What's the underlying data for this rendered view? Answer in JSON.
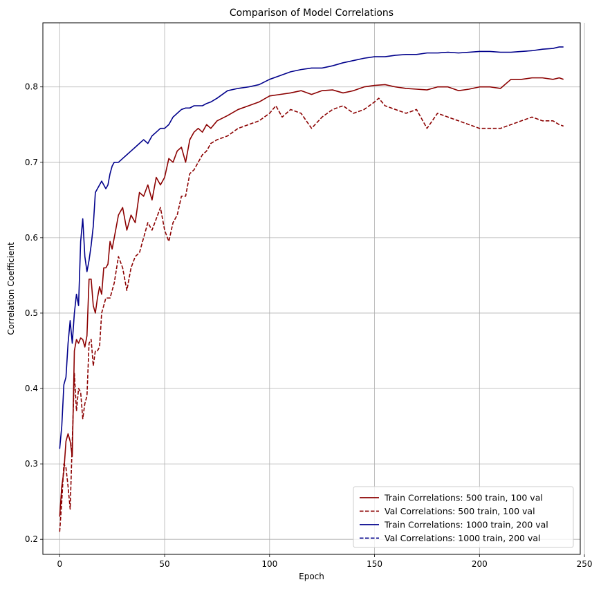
{
  "chart_data": {
    "type": "line",
    "title": "Comparison of Model Correlations",
    "xlabel": "Epoch",
    "ylabel": "Correlation Coefficient",
    "xlim": [
      -8,
      248
    ],
    "ylim": [
      0.18,
      0.885
    ],
    "xticks": [
      0,
      50,
      100,
      150,
      200,
      250
    ],
    "yticks": [
      0.2,
      0.3,
      0.4,
      0.5,
      0.6,
      0.7,
      0.8
    ],
    "grid": true,
    "legend_position": "lower-right",
    "series": [
      {
        "name": "Train Correlations: 500 train, 100 val",
        "color": "#8b0000",
        "style": "solid",
        "x": [
          0,
          1,
          2,
          3,
          4,
          5,
          6,
          7,
          8,
          9,
          10,
          11,
          12,
          13,
          14,
          15,
          16,
          17,
          18,
          19,
          20,
          21,
          22,
          23,
          24,
          25,
          26,
          28,
          30,
          32,
          34,
          36,
          38,
          40,
          42,
          44,
          46,
          48,
          50,
          52,
          54,
          56,
          58,
          60,
          62,
          64,
          66,
          68,
          70,
          72,
          75,
          80,
          85,
          90,
          95,
          100,
          105,
          110,
          115,
          120,
          125,
          130,
          135,
          140,
          145,
          150,
          155,
          160,
          165,
          170,
          175,
          180,
          185,
          190,
          195,
          200,
          205,
          210,
          215,
          220,
          225,
          230,
          235,
          238,
          240
        ],
        "y": [
          0.23,
          0.27,
          0.29,
          0.33,
          0.34,
          0.33,
          0.31,
          0.45,
          0.465,
          0.46,
          0.467,
          0.465,
          0.455,
          0.47,
          0.545,
          0.545,
          0.51,
          0.5,
          0.52,
          0.535,
          0.525,
          0.56,
          0.56,
          0.565,
          0.595,
          0.585,
          0.6,
          0.63,
          0.64,
          0.61,
          0.63,
          0.62,
          0.66,
          0.655,
          0.67,
          0.65,
          0.68,
          0.67,
          0.68,
          0.705,
          0.7,
          0.715,
          0.72,
          0.7,
          0.73,
          0.74,
          0.745,
          0.74,
          0.75,
          0.745,
          0.755,
          0.762,
          0.77,
          0.775,
          0.78,
          0.788,
          0.79,
          0.792,
          0.795,
          0.79,
          0.795,
          0.796,
          0.792,
          0.795,
          0.8,
          0.802,
          0.803,
          0.8,
          0.798,
          0.797,
          0.796,
          0.8,
          0.8,
          0.795,
          0.797,
          0.8,
          0.8,
          0.798,
          0.81,
          0.81,
          0.812,
          0.812,
          0.81,
          0.812,
          0.81
        ]
      },
      {
        "name": "Val Correlations: 500 train, 100 val",
        "color": "#8b0000",
        "style": "dashed",
        "x": [
          0,
          1,
          2,
          3,
          4,
          5,
          6,
          7,
          8,
          9,
          10,
          11,
          12,
          13,
          14,
          15,
          16,
          17,
          18,
          19,
          20,
          21,
          22,
          24,
          26,
          28,
          30,
          32,
          34,
          36,
          38,
          40,
          42,
          44,
          46,
          48,
          50,
          52,
          54,
          56,
          58,
          60,
          62,
          64,
          66,
          68,
          70,
          72,
          75,
          80,
          85,
          90,
          95,
          100,
          103,
          106,
          110,
          115,
          120,
          125,
          130,
          135,
          140,
          145,
          150,
          152,
          155,
          160,
          165,
          170,
          172,
          175,
          180,
          185,
          190,
          195,
          200,
          205,
          210,
          215,
          220,
          225,
          230,
          235,
          238,
          240
        ],
        "y": [
          0.21,
          0.25,
          0.3,
          0.295,
          0.27,
          0.24,
          0.33,
          0.42,
          0.37,
          0.4,
          0.395,
          0.36,
          0.38,
          0.39,
          0.46,
          0.465,
          0.43,
          0.45,
          0.45,
          0.455,
          0.5,
          0.51,
          0.52,
          0.52,
          0.54,
          0.575,
          0.56,
          0.53,
          0.56,
          0.575,
          0.58,
          0.6,
          0.62,
          0.61,
          0.625,
          0.64,
          0.61,
          0.595,
          0.62,
          0.63,
          0.655,
          0.655,
          0.685,
          0.69,
          0.7,
          0.71,
          0.715,
          0.725,
          0.73,
          0.735,
          0.745,
          0.75,
          0.755,
          0.765,
          0.775,
          0.76,
          0.77,
          0.765,
          0.745,
          0.76,
          0.77,
          0.775,
          0.765,
          0.77,
          0.78,
          0.785,
          0.775,
          0.77,
          0.765,
          0.77,
          0.76,
          0.745,
          0.765,
          0.76,
          0.755,
          0.75,
          0.745,
          0.745,
          0.745,
          0.75,
          0.755,
          0.76,
          0.755,
          0.755,
          0.75,
          0.748
        ]
      },
      {
        "name": "Train Correlations: 1000 train, 200 val",
        "color": "#00008b",
        "style": "solid",
        "x": [
          0,
          1,
          2,
          3,
          4,
          5,
          6,
          7,
          8,
          9,
          10,
          11,
          12,
          13,
          14,
          15,
          16,
          17,
          18,
          19,
          20,
          21,
          22,
          23,
          24,
          25,
          26,
          28,
          30,
          32,
          34,
          36,
          38,
          40,
          42,
          44,
          46,
          48,
          50,
          52,
          54,
          56,
          58,
          60,
          62,
          64,
          66,
          68,
          70,
          72,
          75,
          80,
          85,
          90,
          95,
          100,
          105,
          110,
          115,
          120,
          125,
          130,
          135,
          140,
          145,
          150,
          155,
          160,
          165,
          170,
          175,
          180,
          185,
          190,
          195,
          200,
          205,
          210,
          215,
          220,
          225,
          230,
          235,
          238,
          240
        ],
        "y": [
          0.32,
          0.35,
          0.405,
          0.415,
          0.46,
          0.49,
          0.46,
          0.5,
          0.525,
          0.51,
          0.595,
          0.625,
          0.575,
          0.555,
          0.57,
          0.59,
          0.615,
          0.66,
          0.665,
          0.67,
          0.675,
          0.67,
          0.665,
          0.67,
          0.685,
          0.695,
          0.7,
          0.7,
          0.705,
          0.71,
          0.715,
          0.72,
          0.725,
          0.73,
          0.725,
          0.735,
          0.74,
          0.745,
          0.745,
          0.75,
          0.76,
          0.765,
          0.77,
          0.772,
          0.772,
          0.775,
          0.775,
          0.775,
          0.778,
          0.78,
          0.785,
          0.795,
          0.798,
          0.8,
          0.803,
          0.81,
          0.815,
          0.82,
          0.823,
          0.825,
          0.825,
          0.828,
          0.832,
          0.835,
          0.838,
          0.84,
          0.84,
          0.842,
          0.843,
          0.843,
          0.845,
          0.845,
          0.846,
          0.845,
          0.846,
          0.847,
          0.847,
          0.846,
          0.846,
          0.847,
          0.848,
          0.85,
          0.851,
          0.853,
          0.853
        ]
      },
      {
        "name": "Val Correlations: 1000 train, 200 val",
        "color": "#00008b",
        "style": "dashed",
        "x": [],
        "y": []
      }
    ]
  }
}
